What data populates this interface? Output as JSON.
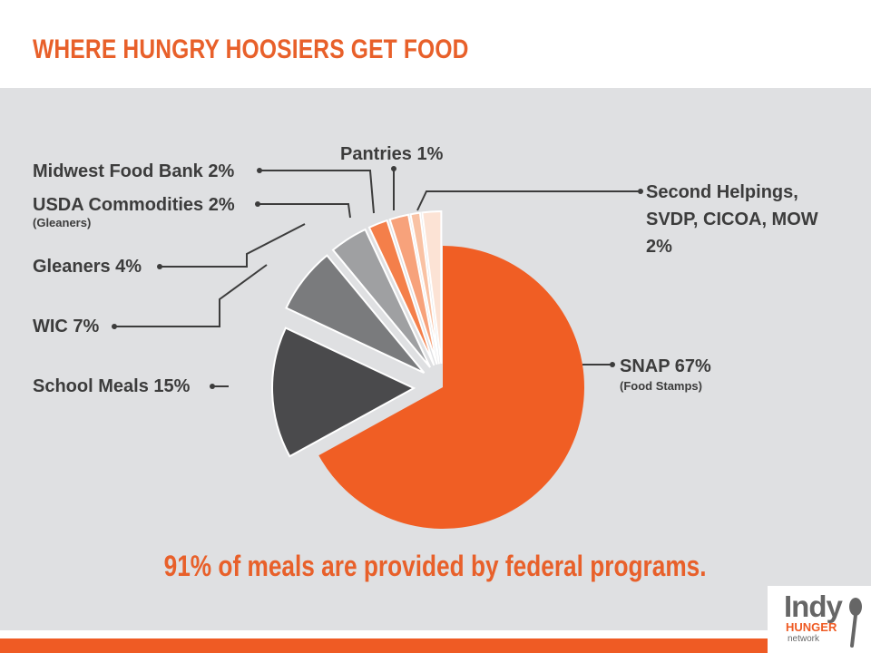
{
  "title": "WHERE HUNGRY HOOSIERS GET FOOD",
  "footnote": "91% of meals are provided by federal programs.",
  "logo": {
    "line1": "Indy",
    "line2": "HUNGER",
    "line3": "network"
  },
  "colors": {
    "accent": "#ef5b24",
    "title": "#e8602a",
    "panel": "#dfe0e2"
  },
  "chart_data": {
    "type": "pie",
    "title": "WHERE HUNGRY HOOSIERS GET FOOD",
    "slices": [
      {
        "label": "SNAP 67%",
        "sublabel": "(Food Stamps)",
        "value": 67,
        "color": "#f05e24"
      },
      {
        "label": "School Meals 15%",
        "sublabel": "",
        "value": 15,
        "color": "#4a4a4c"
      },
      {
        "label": "WIC 7%",
        "sublabel": "",
        "value": 7,
        "color": "#7a7b7d"
      },
      {
        "label": "Gleaners 4%",
        "sublabel": "",
        "value": 4,
        "color": "#9fa0a2"
      },
      {
        "label": "USDA Commodities 2%",
        "sublabel": "(Gleaners)",
        "value": 2,
        "color": "#f47f4a"
      },
      {
        "label": "Midwest Food Bank 2%",
        "sublabel": "",
        "value": 2,
        "color": "#f7a27b"
      },
      {
        "label": "Pantries 1%",
        "sublabel": "",
        "value": 1,
        "color": "#f9c2a4"
      },
      {
        "label": "Second Helpings, SVDP, CICOA, MOW 2%",
        "sublabel": "",
        "value": 2,
        "color": "#fce3d5"
      }
    ]
  }
}
